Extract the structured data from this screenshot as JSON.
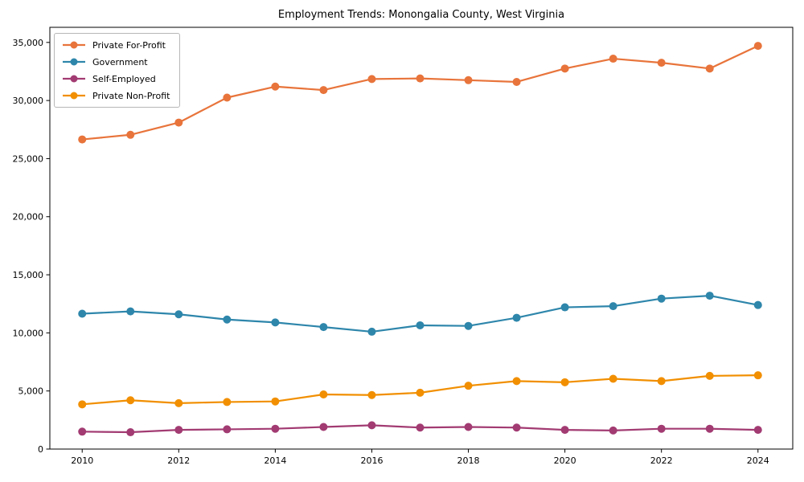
{
  "chart_data": {
    "type": "line",
    "title": "Employment Trends: Monongalia County, West Virginia",
    "xlabel": "",
    "ylabel": "",
    "grid": false,
    "legend_position": "upper-left",
    "xlim": [
      2009.33,
      2024.72
    ],
    "ylim": [
      0,
      36300
    ],
    "x": [
      2010,
      2011,
      2012,
      2013,
      2014,
      2015,
      2016,
      2017,
      2018,
      2019,
      2020,
      2021,
      2022,
      2023,
      2024
    ],
    "xticks": [
      {
        "value": 2010,
        "label": "2010"
      },
      {
        "value": 2012,
        "label": "2012"
      },
      {
        "value": 2014,
        "label": "2014"
      },
      {
        "value": 2016,
        "label": "2016"
      },
      {
        "value": 2018,
        "label": "2018"
      },
      {
        "value": 2020,
        "label": "2020"
      },
      {
        "value": 2022,
        "label": "2022"
      },
      {
        "value": 2024,
        "label": "2024"
      }
    ],
    "yticks": [
      {
        "value": 0,
        "label": "0"
      },
      {
        "value": 5000,
        "label": "5,000"
      },
      {
        "value": 10000,
        "label": "10,000"
      },
      {
        "value": 15000,
        "label": "15,000"
      },
      {
        "value": 20000,
        "label": "20,000"
      },
      {
        "value": 25000,
        "label": "25,000"
      },
      {
        "value": 30000,
        "label": "30,000"
      },
      {
        "value": 35000,
        "label": "35,000"
      }
    ],
    "series": [
      {
        "name": "Private For-Profit",
        "color": "#E8743B",
        "values": [
          26650,
          27050,
          28100,
          30250,
          31200,
          30900,
          31850,
          31900,
          31750,
          31600,
          32750,
          33600,
          33250,
          32750,
          34700
        ]
      },
      {
        "name": "Government",
        "color": "#2E86AB",
        "values": [
          11650,
          11850,
          11600,
          11150,
          10900,
          10500,
          10100,
          10650,
          10600,
          11300,
          12200,
          12300,
          12950,
          13200,
          12400
        ]
      },
      {
        "name": "Self-Employed",
        "color": "#A23B72",
        "values": [
          1500,
          1450,
          1650,
          1700,
          1750,
          1900,
          2050,
          1850,
          1900,
          1850,
          1650,
          1600,
          1750,
          1750,
          1650
        ]
      },
      {
        "name": "Private Non-Profit",
        "color": "#F18F01",
        "values": [
          3850,
          4200,
          3950,
          4050,
          4100,
          4700,
          4650,
          4850,
          5450,
          5850,
          5750,
          6050,
          5850,
          6300,
          6350
        ]
      }
    ]
  }
}
